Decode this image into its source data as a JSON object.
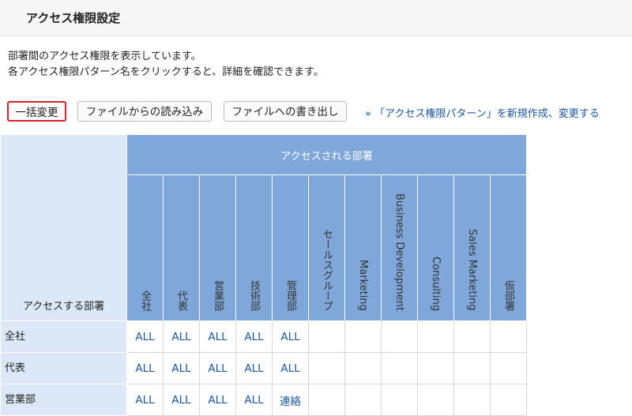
{
  "header": {
    "title": "アクセス権限設定"
  },
  "description": [
    "部署間のアクセス権限を表示しています。",
    "各アクセス権限パターン名をクリックすると、詳細を確認できます。"
  ],
  "toolbar": {
    "buttons": [
      "一括変更",
      "ファイルからの読み込み",
      "ファイルへの書き出し"
    ],
    "link": "» 「アクセス権限パターン」を新規作成、変更する"
  },
  "table": {
    "row_header": "アクセスする部署",
    "column_group": "アクセスされる部署",
    "columns": [
      "全社",
      "代表",
      "営業部",
      "技術部",
      "管理部",
      "セールスグループ",
      "Marketing",
      "Business Development",
      "Consulting",
      "Sales Marketing",
      "仮部署"
    ],
    "rows": [
      {
        "label": "全社",
        "cells": [
          "ALL",
          "ALL",
          "ALL",
          "ALL",
          "ALL"
        ]
      },
      {
        "label": "代表",
        "cells": [
          "ALL",
          "ALL",
          "ALL",
          "ALL",
          "ALL"
        ]
      },
      {
        "label": "営業部",
        "cells": [
          "ALL",
          "ALL",
          "ALL",
          "ALL",
          "連絡"
        ]
      }
    ]
  }
}
